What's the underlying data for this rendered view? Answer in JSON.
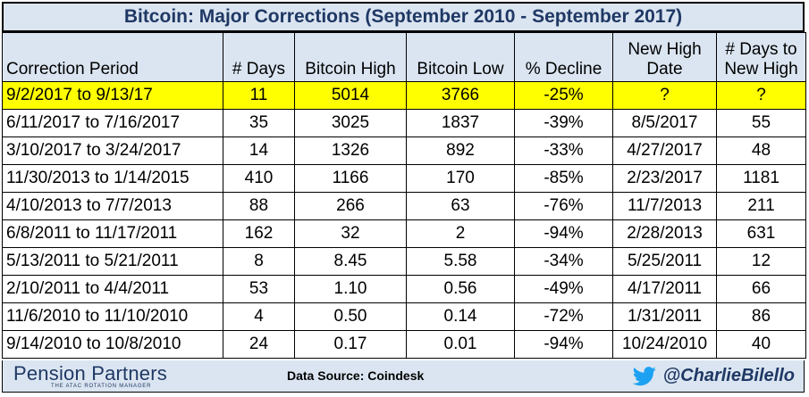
{
  "title": "Bitcoin: Major Corrections (September 2010 - September 2017)",
  "headers": {
    "period": "Correction Period",
    "days": "# Days",
    "high": "Bitcoin High",
    "low": "Bitcoin Low",
    "decline": "% Decline",
    "new_high_date_line1": "New High",
    "new_high_date_line2": "Date",
    "days_to_new_high_line1": "# Days to",
    "days_to_new_high_line2": "New High"
  },
  "rows": [
    {
      "period": "9/2/2017 to 9/13/17",
      "days": "11",
      "high": "5014",
      "low": "3766",
      "decline": "-25%",
      "new_high_date": "?",
      "days_to_new_high": "?"
    },
    {
      "period": "6/11/2017 to 7/16/2017",
      "days": "35",
      "high": "3025",
      "low": "1837",
      "decline": "-39%",
      "new_high_date": "8/5/2017",
      "days_to_new_high": "55"
    },
    {
      "period": "3/10/2017 to 3/24/2017",
      "days": "14",
      "high": "1326",
      "low": "892",
      "decline": "-33%",
      "new_high_date": "4/27/2017",
      "days_to_new_high": "48"
    },
    {
      "period": "11/30/2013 to 1/14/2015",
      "days": "410",
      "high": "1166",
      "low": "170",
      "decline": "-85%",
      "new_high_date": "2/23/2017",
      "days_to_new_high": "1181"
    },
    {
      "period": "4/10/2013 to 7/7/2013",
      "days": "88",
      "high": "266",
      "low": "63",
      "decline": "-76%",
      "new_high_date": "11/7/2013",
      "days_to_new_high": "211"
    },
    {
      "period": "6/8/2011 to 11/17/2011",
      "days": "162",
      "high": "32",
      "low": "2",
      "decline": "-94%",
      "new_high_date": "2/28/2013",
      "days_to_new_high": "631"
    },
    {
      "period": "5/13/2011 to 5/21/2011",
      "days": "8",
      "high": "8.45",
      "low": "5.58",
      "decline": "-34%",
      "new_high_date": "5/25/2011",
      "days_to_new_high": "12"
    },
    {
      "period": "2/10/2011 to 4/4/2011",
      "days": "53",
      "high": "1.10",
      "low": "0.56",
      "decline": "-49%",
      "new_high_date": "4/17/2011",
      "days_to_new_high": "66"
    },
    {
      "period": "11/6/2010 to 11/10/2010",
      "days": "4",
      "high": "0.50",
      "low": "0.14",
      "decline": "-72%",
      "new_high_date": "1/31/2011",
      "days_to_new_high": "86"
    },
    {
      "period": "9/14/2010 to 10/8/2010",
      "days": "24",
      "high": "0.17",
      "low": "0.01",
      "decline": "-94%",
      "new_high_date": "10/24/2010",
      "days_to_new_high": "40"
    }
  ],
  "footer": {
    "logo": "Pension Partners",
    "logo_tagline": "THE ATAC ROTATION MANAGER",
    "source": "Data Source: Coindesk",
    "handle": "@CharlieBilello"
  },
  "colors": {
    "header_bg": "#dbe5f1",
    "title_text": "#1f3864",
    "highlight": "#ffff00"
  }
}
